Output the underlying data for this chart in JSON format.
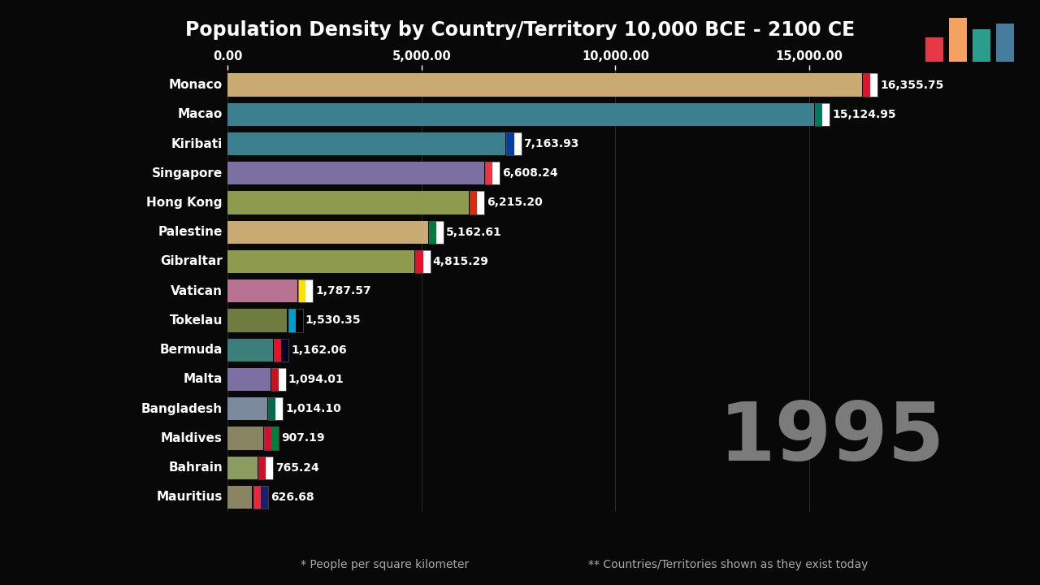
{
  "title": "Population Density by Country/Territory 10,000 BCE - 2100 CE",
  "year_label": "1995",
  "footnote1": "* People per square kilometer",
  "footnote2": "** Countries/Territories shown as they exist today",
  "background_color": "#080808",
  "title_color": "#ffffff",
  "axis_label_color": "#ffffff",
  "value_label_color": "#ffffff",
  "country_label_color": "#ffffff",
  "xlim": [
    0,
    17200
  ],
  "xticks": [
    0,
    5000,
    10000,
    15000
  ],
  "xtick_labels": [
    "0.00",
    "5,000.00",
    "10,000.00",
    "15,000.00"
  ],
  "countries": [
    "Monaco",
    "Macao",
    "Kiribati",
    "Singapore",
    "Hong Kong",
    "Palestine",
    "Gibraltar",
    "Vatican",
    "Tokelau",
    "Bermuda",
    "Malta",
    "Bangladesh",
    "Maldives",
    "Bahrain",
    "Mauritius"
  ],
  "values": [
    16355.75,
    15124.95,
    7163.93,
    6608.24,
    6215.2,
    5162.61,
    4815.29,
    1787.57,
    1530.35,
    1162.06,
    1094.01,
    1014.1,
    907.19,
    765.24,
    626.68
  ],
  "bar_colors": [
    "#c9aa72",
    "#3c7f8e",
    "#3c7f8e",
    "#7c70a2",
    "#8e9b4e",
    "#c9aa72",
    "#8e9b4e",
    "#b87292",
    "#6e7c40",
    "#3c7e7a",
    "#7c70a2",
    "#7a8a9c",
    "#888462",
    "#8a9c62",
    "#8a8462"
  ],
  "value_labels": [
    "16,355.75",
    "15,124.95",
    "7,163.93",
    "6,608.24",
    "6,215.20",
    "5,162.61",
    "4,815.29",
    "1,787.57",
    "1,530.35",
    "1,162.06",
    "1,094.01",
    "1,014.10",
    "907.19",
    "765.24",
    "626.68"
  ],
  "flag_colors": [
    [
      "#e8112d",
      "#ffffff"
    ],
    [
      "#007b5e",
      "#ffffff"
    ],
    [
      "#003da5",
      "#ffffff"
    ],
    [
      "#ef3340",
      "#ffffff"
    ],
    [
      "#de2910",
      "#ffffff"
    ],
    [
      "#007a3d",
      "#ffffff"
    ],
    [
      "#e8112d",
      "#ffffff"
    ],
    [
      "#ffe000",
      "#ffffff"
    ],
    [
      "#009fca",
      "#000000"
    ],
    [
      "#e8112d",
      "#000022"
    ],
    [
      "#cf101a",
      "#ffffff"
    ],
    [
      "#006a4e",
      "#ffffff"
    ],
    [
      "#d21034",
      "#007e3a"
    ],
    [
      "#ce1126",
      "#ffffff"
    ],
    [
      "#ea2839",
      "#1a206d"
    ]
  ]
}
